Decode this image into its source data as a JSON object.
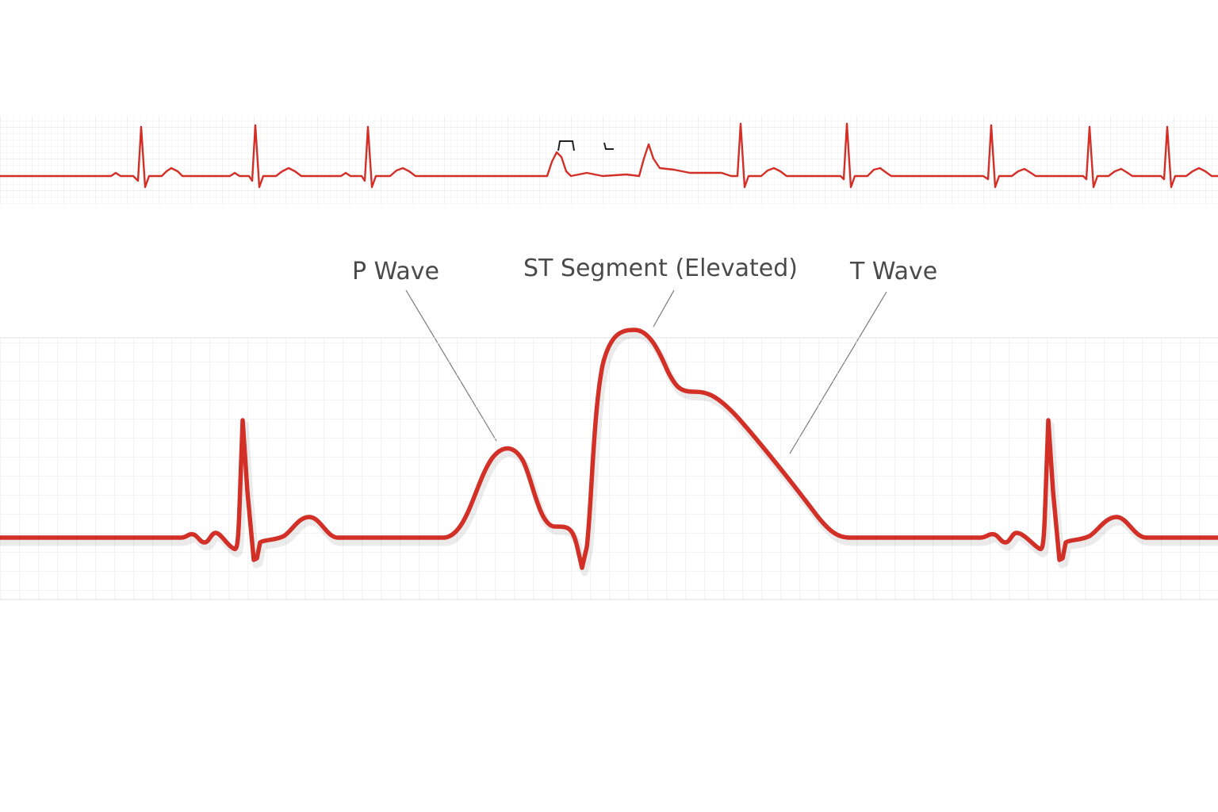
{
  "diagram": {
    "labels": {
      "p_wave": "P Wave",
      "st_segment": "ST Segment (Elevated)",
      "t_wave": "T Wave"
    },
    "colors": {
      "trace": "#d22f27",
      "grid_minor": "#ececec",
      "grid_major": "#dedede",
      "label": "#4a4a4a",
      "leader": "#7a7a7a",
      "background": "#ffffff"
    }
  }
}
